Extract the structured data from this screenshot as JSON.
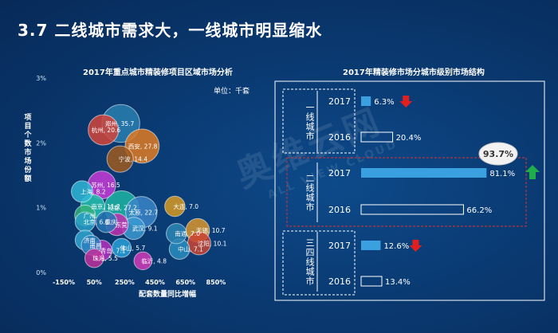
{
  "slide": {
    "title": "3.7  二线城市需求大，一线城市明显缩水",
    "watermark": "奥维云网",
    "watermark_sub": "ALL VIEW CLOUD"
  },
  "chart_data": [
    {
      "type": "scatter",
      "title": "2017年重点城市精装修项目区域市场分析",
      "xlabel": "配套数量同比增幅",
      "ylabel": "项目个数市场份额",
      "unit": "单位：千套",
      "x_ticks": [
        "-150%",
        "50%",
        "250%",
        "450%",
        "650%",
        "850%"
      ],
      "y_ticks": [
        "0%",
        "1%",
        "2%",
        "3%"
      ],
      "xlim": [
        -150,
        950
      ],
      "ylim": [
        0,
        3
      ],
      "points": [
        {
          "city": "郑州",
          "label": "郑州, 35.7",
          "x": 225,
          "y": 2.3,
          "size": 35.7,
          "color": "#2a7fb0"
        },
        {
          "city": "杭州",
          "label": "杭州, 20.6",
          "x": 110,
          "y": 2.2,
          "size": 20.6,
          "color": "#d4453a"
        },
        {
          "city": "西安",
          "label": "西安, 27.8",
          "x": 365,
          "y": 1.95,
          "size": 27.8,
          "color": "#e07b22"
        },
        {
          "city": "宁波",
          "label": "宁波, 14.4",
          "x": 220,
          "y": 1.75,
          "size": 14.4,
          "color": "#a05a1e"
        },
        {
          "city": "苏州",
          "label": "苏州, 16.5",
          "x": 100,
          "y": 1.35,
          "size": 16.5,
          "color": "#c73bd6"
        },
        {
          "city": "上海",
          "label": "上海, 8.2",
          "x": -30,
          "y": 1.25,
          "size": 8.2,
          "color": "#2fb7d8"
        },
        {
          "city": "南京",
          "label": "南京, 11.2",
          "x": 40,
          "y": 1.02,
          "size": 11.2,
          "color": "#27c3b0"
        },
        {
          "city": "成都",
          "label": "成都, 27.2",
          "x": 230,
          "y": 1.0,
          "size": 27.2,
          "color": "#1fb5a5"
        },
        {
          "city": "太原",
          "label": "太原, 22.7",
          "x": 360,
          "y": 0.93,
          "size": 22.7,
          "color": "#3a86c8"
        },
        {
          "city": "大连",
          "label": "大连, 7.0",
          "x": 580,
          "y": 1.02,
          "size": 7.0,
          "color": "#d79a22"
        },
        {
          "city": "广州",
          "label": "广州",
          "x": -10,
          "y": 0.88,
          "size": 7.5,
          "color": "#34b27a"
        },
        {
          "city": "北京",
          "label": "北京, 6.6",
          "x": -10,
          "y": 0.78,
          "size": 6.6,
          "color": "#29a0c8"
        },
        {
          "city": "重庆",
          "label": "重庆",
          "x": 130,
          "y": 0.78,
          "size": 8.0,
          "color": "#2577b4"
        },
        {
          "city": "东莞",
          "label": "东莞",
          "x": 200,
          "y": 0.74,
          "size": 9.0,
          "color": "#c22fae"
        },
        {
          "city": "武汉",
          "label": "武汉, 9.1",
          "x": 310,
          "y": 0.68,
          "size": 9.1,
          "color": "#3b9ad0"
        },
        {
          "city": "无锡",
          "label": "无锡, 10.7",
          "x": 730,
          "y": 0.65,
          "size": 10.7,
          "color": "#d9952a"
        },
        {
          "city": "南通",
          "label": "南通, 7.0",
          "x": 590,
          "y": 0.6,
          "size": 7.0,
          "color": "#2c86b5"
        },
        {
          "city": "济南",
          "label": "济南",
          "x": -10,
          "y": 0.5,
          "size": 6.5,
          "color": "#2fa6cf"
        },
        {
          "city": "沈阳",
          "label": "沈阳, 10.1",
          "x": 740,
          "y": 0.45,
          "size": 10.1,
          "color": "#c94433"
        },
        {
          "city": "南昌",
          "label": "南昌",
          "x": 30,
          "y": 0.42,
          "size": 6.5,
          "color": "#2d7fbf"
        },
        {
          "city": "中山",
          "label": "中山, 7.1",
          "x": 610,
          "y": 0.36,
          "size": 7.1,
          "color": "#2a8ec0"
        },
        {
          "city": "青岛",
          "label": "青岛, 7.1",
          "x": 100,
          "y": 0.34,
          "size": 7.1,
          "color": "#b531c2"
        },
        {
          "city": "佛山",
          "label": "佛山, 5.7",
          "x": 230,
          "y": 0.38,
          "size": 5.7,
          "color": "#29a0d8"
        },
        {
          "city": "珠海",
          "label": "珠海, 5.5",
          "x": 50,
          "y": 0.22,
          "size": 5.5,
          "color": "#c0309c"
        },
        {
          "city": "临沂",
          "label": "临沂, 4.8",
          "x": 370,
          "y": 0.18,
          "size": 4.8,
          "color": "#d13ab8"
        }
      ]
    },
    {
      "type": "bar",
      "title": "2017年精装修市场分城市级别市场结构",
      "groups": [
        {
          "name": "一线城市",
          "bars": [
            {
              "year": "2017",
              "value": 6.3,
              "label": "6.3%",
              "filled": true,
              "arrow": "down"
            },
            {
              "year": "2016",
              "value": 20.4,
              "label": "20.4%",
              "filled": false
            }
          ]
        },
        {
          "name": "二线城市",
          "bars": [
            {
              "year": "2017",
              "value": 81.1,
              "label": "81.1%",
              "filled": true,
              "arrow": "up"
            },
            {
              "year": "2016",
              "value": 66.2,
              "label": "66.2%",
              "filled": false
            }
          ]
        },
        {
          "name": "三四线城市",
          "bars": [
            {
              "year": "2017",
              "value": 12.6,
              "label": "12.6%",
              "filled": true,
              "arrow": "down"
            },
            {
              "year": "2016",
              "value": 13.4,
              "label": "13.4%",
              "filled": false
            }
          ]
        }
      ],
      "callout": "93.7%",
      "colors": {
        "filled": "#3aa0e0",
        "outline": "#ffffff",
        "up": "#1fae4a",
        "down": "#e02020"
      }
    }
  ]
}
